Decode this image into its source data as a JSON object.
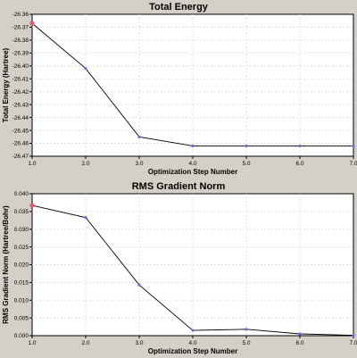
{
  "chart_data": [
    {
      "type": "line",
      "title": "Total Energy",
      "xlabel": "Optimization Step Number",
      "ylabel": "Total Energy (Hartree)",
      "x": [
        1.0,
        2.0,
        3.0,
        4.0,
        5.0,
        6.0,
        7.0
      ],
      "values": [
        -26.367,
        -26.402,
        -26.455,
        -26.462,
        -26.462,
        -26.462,
        -26.462
      ],
      "xlim": [
        1.0,
        7.0
      ],
      "ylim": [
        -26.47,
        -26.36
      ],
      "xticks": [
        "1.0",
        "2.0",
        "3.0",
        "4.0",
        "5.0",
        "6.0",
        "7.0"
      ],
      "yticks": [
        "-26.36",
        "-26.37",
        "-26.38",
        "-26.39",
        "-26.40",
        "-26.41",
        "-26.42",
        "-26.43",
        "-26.44",
        "-26.45",
        "-26.46",
        "-26.47"
      ],
      "grid": true,
      "colors": {
        "line": "#000000",
        "point": "#6a6ae0",
        "first_point": "#e05a78"
      }
    },
    {
      "type": "line",
      "title": "RMS Gradient Norm",
      "xlabel": "Optimization Step Number",
      "ylabel": "RMS Gradient Norm (Hartree/Bohr)",
      "x": [
        1.0,
        2.0,
        3.0,
        4.0,
        5.0,
        6.0,
        7.0
      ],
      "values": [
        0.0367,
        0.0333,
        0.0143,
        0.0015,
        0.0018,
        0.0005,
        0.0001
      ],
      "xlim": [
        1.0,
        7.0
      ],
      "ylim": [
        0.0,
        0.04
      ],
      "xticks": [
        "1.0",
        "2.0",
        "3.0",
        "4.0",
        "5.0",
        "6.0",
        "7.0"
      ],
      "yticks": [
        "0.040",
        "0.035",
        "0.030",
        "0.025",
        "0.020",
        "0.015",
        "0.010",
        "0.005",
        "0.000"
      ],
      "grid": true,
      "colors": {
        "line": "#000000",
        "point": "#6a6ae0",
        "first_point": "#e05a78"
      }
    }
  ]
}
